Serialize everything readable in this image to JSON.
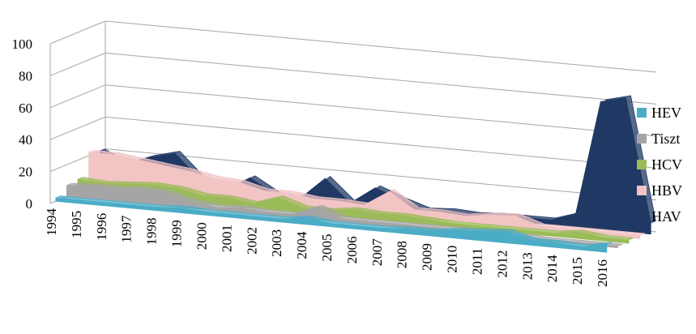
{
  "chart_data": {
    "type": "area",
    "title": "",
    "xlabel": "",
    "ylabel": "",
    "ylim": [
      0,
      100
    ],
    "yticks": [
      "0",
      "20",
      "40",
      "60",
      "80",
      "100"
    ],
    "grid": true,
    "legend_position": "right",
    "categories": [
      "1994",
      "1995",
      "1996",
      "1997",
      "1998",
      "1999",
      "2000",
      "2001",
      "2002",
      "2003",
      "2004",
      "2005",
      "2006",
      "2007",
      "2008",
      "2009",
      "2010",
      "2011",
      "2012",
      "2013",
      "2014",
      "2015",
      "2016"
    ],
    "series": [
      {
        "name": "HEV",
        "color": "#4bacc6",
        "values": [
          2,
          2,
          2,
          2,
          2,
          3,
          2,
          2,
          2,
          2,
          4,
          2,
          2,
          2,
          3,
          3,
          5,
          6,
          7,
          3,
          3,
          2,
          5
        ]
      },
      {
        "name": "Tiszt",
        "color": "#a5a5a5",
        "values": [
          7,
          8,
          8,
          9,
          8,
          4,
          2,
          3,
          2,
          2,
          8,
          2,
          2,
          2,
          2,
          2,
          2,
          2,
          2,
          1,
          1,
          1,
          1
        ]
      },
      {
        "name": "HCV",
        "color": "#9bbb59",
        "values": [
          8,
          7,
          8,
          9,
          8,
          5,
          5,
          3,
          8,
          3,
          3,
          5,
          4,
          4,
          3,
          2,
          2,
          2,
          2,
          2,
          4,
          2,
          2
        ]
      },
      {
        "name": "HBV",
        "color": "#f2c4c4",
        "values": [
          22,
          22,
          20,
          18,
          16,
          13,
          12,
          8,
          8,
          6,
          6,
          5,
          15,
          5,
          5,
          4,
          6,
          7,
          2,
          2,
          2,
          2,
          2
        ]
      },
      {
        "name": "HAV",
        "color": "#1f3864",
        "values": [
          20,
          13,
          19,
          23,
          8,
          3,
          12,
          3,
          2,
          16,
          2,
          13,
          7,
          2,
          3,
          2,
          3,
          3,
          3,
          8,
          80,
          84,
          7
        ]
      }
    ]
  }
}
